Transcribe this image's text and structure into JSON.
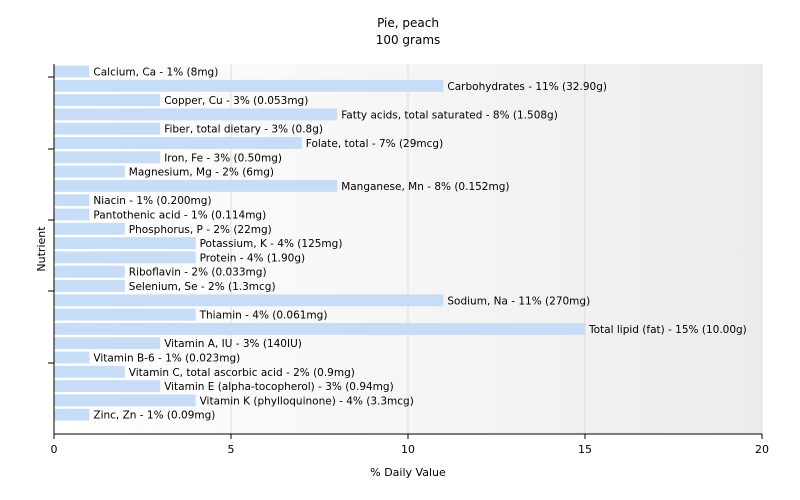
{
  "chart_data": {
    "type": "bar",
    "orientation": "horizontal",
    "title": "Pie, peach",
    "subtitle": "100 grams",
    "xlabel": "% Daily Value",
    "ylabel": "Nutrient",
    "xlim": [
      0,
      20
    ],
    "xticks": [
      "0",
      "5",
      "10",
      "15",
      "20"
    ],
    "grid": true,
    "bar_color": "#c6dcf7",
    "categories": [
      "Calcium, Ca",
      "Carbohydrates",
      "Copper, Cu",
      "Fatty acids, total saturated",
      "Fiber, total dietary",
      "Folate, total",
      "Iron, Fe",
      "Magnesium, Mg",
      "Manganese, Mn",
      "Niacin",
      "Pantothenic acid",
      "Phosphorus, P",
      "Potassium, K",
      "Protein",
      "Riboflavin",
      "Selenium, Se",
      "Sodium, Na",
      "Thiamin",
      "Total lipid (fat)",
      "Vitamin A, IU",
      "Vitamin B-6",
      "Vitamin C, total ascorbic acid",
      "Vitamin E (alpha-tocopherol)",
      "Vitamin K (phylloquinone)",
      "Zinc, Zn"
    ],
    "values": [
      1,
      11,
      3,
      8,
      3,
      7,
      3,
      2,
      8,
      1,
      1,
      2,
      4,
      4,
      2,
      2,
      11,
      4,
      15,
      3,
      1,
      2,
      3,
      4,
      1
    ],
    "labels": [
      "Calcium, Ca - 1% (8mg)",
      "Carbohydrates - 11% (32.90g)",
      "Copper, Cu - 3% (0.053mg)",
      "Fatty acids, total saturated - 8% (1.508g)",
      "Fiber, total dietary - 3% (0.8g)",
      "Folate, total - 7% (29mcg)",
      "Iron, Fe - 3% (0.50mg)",
      "Magnesium, Mg - 2% (6mg)",
      "Manganese, Mn - 8% (0.152mg)",
      "Niacin - 1% (0.200mg)",
      "Pantothenic acid - 1% (0.114mg)",
      "Phosphorus, P - 2% (22mg)",
      "Potassium, K - 4% (125mg)",
      "Protein - 4% (1.90g)",
      "Riboflavin - 2% (0.033mg)",
      "Selenium, Se - 2% (1.3mcg)",
      "Sodium, Na - 11% (270mg)",
      "Thiamin - 4% (0.061mg)",
      "Total lipid (fat) - 15% (10.00g)",
      "Vitamin A, IU - 3% (140IU)",
      "Vitamin B-6 - 1% (0.023mg)",
      "Vitamin C, total ascorbic acid - 2% (0.9mg)",
      "Vitamin E (alpha-tocopherol) - 3% (0.94mg)",
      "Vitamin K (phylloquinone) - 4% (3.3mcg)",
      "Zinc, Zn - 1% (0.09mg)"
    ]
  }
}
